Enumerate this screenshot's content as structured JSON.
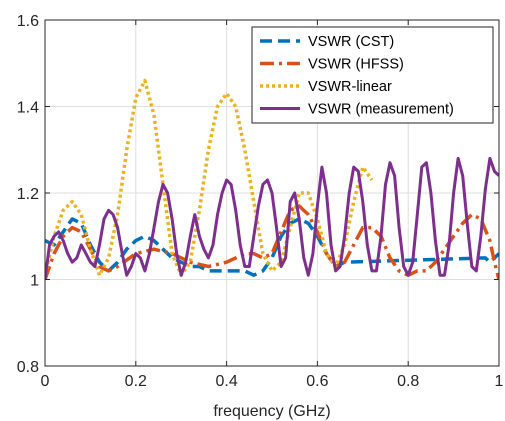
{
  "chart_data": {
    "type": "line",
    "title": "",
    "xlabel": "frequency (GHz)",
    "ylabel": "",
    "xlim": [
      0,
      1
    ],
    "ylim": [
      0.8,
      1.6
    ],
    "x_ticks": [
      "0",
      "0.2",
      "0.4",
      "0.6",
      "0.8",
      "1"
    ],
    "y_ticks": [
      "0.8",
      "1",
      "1.2",
      "1.4",
      "1.6"
    ],
    "grid": true,
    "legend_position": "top-right",
    "series": [
      {
        "name": "VSWR (CST)",
        "color": "#0072BD",
        "style": "dashed",
        "x": [
          0.0,
          0.02,
          0.04,
          0.06,
          0.08,
          0.1,
          0.12,
          0.14,
          0.16,
          0.18,
          0.2,
          0.22,
          0.24,
          0.26,
          0.28,
          0.3,
          0.32,
          0.34,
          0.36,
          0.38,
          0.4,
          0.42,
          0.44,
          0.46,
          0.48,
          0.5,
          0.52,
          0.54,
          0.56,
          0.58,
          0.6,
          0.62,
          0.64,
          0.66,
          0.97,
          0.98,
          0.99,
          1.0
        ],
        "y": [
          1.09,
          1.08,
          1.11,
          1.14,
          1.13,
          1.08,
          1.04,
          1.02,
          1.04,
          1.07,
          1.09,
          1.1,
          1.09,
          1.07,
          1.05,
          1.04,
          1.03,
          1.03,
          1.02,
          1.02,
          1.02,
          1.02,
          1.02,
          1.01,
          1.02,
          1.05,
          1.1,
          1.13,
          1.14,
          1.13,
          1.1,
          1.06,
          1.03,
          1.04,
          1.05,
          1.04,
          1.05,
          1.06
        ]
      },
      {
        "name": "VSWR (HFSS)",
        "color": "#D95319",
        "style": "dashdot",
        "x": [
          0.0,
          0.02,
          0.04,
          0.06,
          0.08,
          0.1,
          0.12,
          0.14,
          0.16,
          0.2,
          0.24,
          0.28,
          0.32,
          0.36,
          0.4,
          0.42,
          0.44,
          0.46,
          0.48,
          0.5,
          0.52,
          0.54,
          0.56,
          0.58,
          0.6,
          0.62,
          0.64,
          0.66,
          0.68,
          0.7,
          0.72,
          0.74,
          0.76,
          0.78,
          0.8,
          0.82,
          0.84,
          0.86,
          0.88,
          0.9,
          0.92,
          0.94,
          0.96,
          0.98,
          0.99,
          1.0
        ],
        "y": [
          1.0,
          1.06,
          1.1,
          1.12,
          1.11,
          1.07,
          1.03,
          1.02,
          1.03,
          1.06,
          1.07,
          1.06,
          1.04,
          1.03,
          1.04,
          1.05,
          1.06,
          1.06,
          1.05,
          1.06,
          1.11,
          1.16,
          1.17,
          1.15,
          1.11,
          1.06,
          1.03,
          1.04,
          1.08,
          1.12,
          1.12,
          1.1,
          1.05,
          1.02,
          1.01,
          1.02,
          1.02,
          1.04,
          1.07,
          1.1,
          1.13,
          1.15,
          1.14,
          1.09,
          1.04,
          1.0
        ]
      },
      {
        "name": "VSWR-linear",
        "color": "#EDB120",
        "style": "dotted",
        "x": [
          0.0,
          0.02,
          0.04,
          0.06,
          0.08,
          0.1,
          0.12,
          0.14,
          0.16,
          0.18,
          0.2,
          0.22,
          0.24,
          0.26,
          0.28,
          0.3,
          0.32,
          0.34,
          0.36,
          0.38,
          0.4,
          0.42,
          0.44,
          0.46,
          0.48,
          0.5,
          0.52,
          0.54,
          0.56,
          0.58,
          0.6,
          0.62,
          0.64,
          0.66,
          0.68,
          0.7,
          0.72
        ],
        "y": [
          1.01,
          1.1,
          1.16,
          1.18,
          1.15,
          1.07,
          1.01,
          1.05,
          1.15,
          1.3,
          1.42,
          1.46,
          1.38,
          1.22,
          1.06,
          1.01,
          1.04,
          1.16,
          1.3,
          1.4,
          1.43,
          1.4,
          1.3,
          1.18,
          1.06,
          1.02,
          1.04,
          1.12,
          1.2,
          1.2,
          1.14,
          1.06,
          1.03,
          1.08,
          1.18,
          1.26,
          1.23
        ]
      },
      {
        "name": "VSWR (measurement)",
        "color": "#7E2F8E",
        "style": "solid",
        "x": [
          0.0,
          0.01,
          0.02,
          0.03,
          0.04,
          0.05,
          0.06,
          0.07,
          0.08,
          0.09,
          0.1,
          0.11,
          0.12,
          0.13,
          0.14,
          0.15,
          0.16,
          0.17,
          0.18,
          0.19,
          0.2,
          0.21,
          0.22,
          0.23,
          0.24,
          0.25,
          0.26,
          0.27,
          0.28,
          0.29,
          0.3,
          0.31,
          0.32,
          0.33,
          0.34,
          0.35,
          0.36,
          0.37,
          0.38,
          0.39,
          0.4,
          0.41,
          0.42,
          0.43,
          0.44,
          0.45,
          0.46,
          0.47,
          0.48,
          0.49,
          0.5,
          0.51,
          0.52,
          0.53,
          0.54,
          0.55,
          0.56,
          0.57,
          0.58,
          0.59,
          0.6,
          0.61,
          0.62,
          0.63,
          0.64,
          0.65,
          0.66,
          0.67,
          0.68,
          0.69,
          0.7,
          0.71,
          0.72,
          0.73,
          0.74,
          0.75,
          0.76,
          0.77,
          0.78,
          0.79,
          0.8,
          0.81,
          0.82,
          0.83,
          0.84,
          0.85,
          0.86,
          0.87,
          0.88,
          0.89,
          0.9,
          0.91,
          0.92,
          0.93,
          0.94,
          0.95,
          0.96,
          0.97,
          0.98,
          0.99,
          1.0
        ],
        "y": [
          1.0,
          1.08,
          1.1,
          1.11,
          1.09,
          1.06,
          1.04,
          1.05,
          1.08,
          1.06,
          1.04,
          1.03,
          1.08,
          1.14,
          1.16,
          1.15,
          1.12,
          1.06,
          1.01,
          1.03,
          1.06,
          1.05,
          1.02,
          1.06,
          1.12,
          1.18,
          1.22,
          1.2,
          1.14,
          1.06,
          1.01,
          1.04,
          1.1,
          1.15,
          1.1,
          1.07,
          1.05,
          1.08,
          1.15,
          1.2,
          1.23,
          1.22,
          1.16,
          1.08,
          1.03,
          1.03,
          1.1,
          1.17,
          1.22,
          1.23,
          1.2,
          1.12,
          1.03,
          1.05,
          1.18,
          1.2,
          1.14,
          1.05,
          1.01,
          1.06,
          1.17,
          1.26,
          1.2,
          1.08,
          1.02,
          1.03,
          1.1,
          1.2,
          1.26,
          1.25,
          1.18,
          1.08,
          1.02,
          1.02,
          1.1,
          1.22,
          1.27,
          1.24,
          1.12,
          1.03,
          1.01,
          1.04,
          1.15,
          1.26,
          1.27,
          1.2,
          1.09,
          1.01,
          1.01,
          1.08,
          1.2,
          1.28,
          1.24,
          1.13,
          1.03,
          1.02,
          1.1,
          1.21,
          1.28,
          1.25,
          1.24
        ]
      }
    ]
  }
}
